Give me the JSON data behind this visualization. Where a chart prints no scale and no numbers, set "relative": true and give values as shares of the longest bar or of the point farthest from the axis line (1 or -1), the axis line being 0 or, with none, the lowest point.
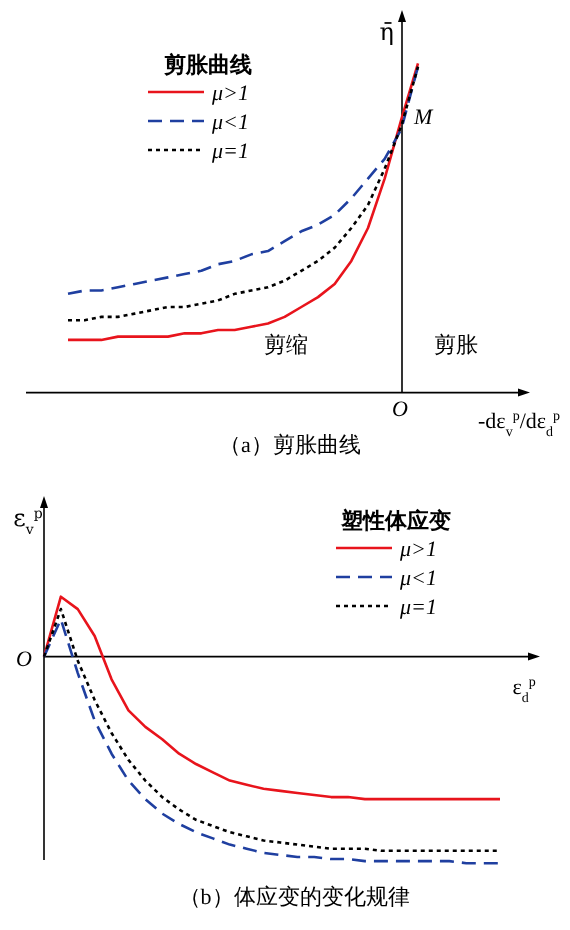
{
  "chart_data": [
    {
      "type": "line",
      "relative": true,
      "legend_title": "剪胀曲线",
      "legend": "top left",
      "xlabel": "-dε$_{v}$$^{p}$/dε$_{d}$$^{p}$",
      "ylabel": "η̄",
      "annotations": [
        "剪缩",
        "剪胀",
        "M",
        "O",
        "（a）剪胀曲线"
      ],
      "categories": [
        null,
        null,
        null,
        null,
        null,
        null,
        null,
        null,
        null,
        null,
        null,
        null,
        null,
        null,
        null,
        null,
        null,
        null,
        null,
        null,
        null,
        null
      ],
      "series": [
        {
          "name": "μ>1",
          "color": "#e8141c",
          "line_style": "solid",
          "values": [
            0.16,
            0.16,
            0.16,
            0.17,
            0.17,
            0.17,
            0.17,
            0.18,
            0.18,
            0.19,
            0.19,
            0.2,
            0.21,
            0.23,
            0.26,
            0.29,
            0.33,
            0.4,
            0.5,
            0.65,
            0.83,
            1
          ]
        },
        {
          "name": "μ<1",
          "color": "#1f3fa0",
          "line_style": "dashed",
          "values": [
            0.3,
            0.31,
            0.31,
            0.32,
            0.33,
            0.34,
            0.35,
            0.36,
            0.37,
            0.39,
            0.4,
            0.42,
            0.43,
            0.46,
            0.49,
            0.51,
            0.54,
            0.59,
            0.65,
            0.71,
            0.8,
            0.99
          ]
        },
        {
          "name": "μ=1",
          "color": "#000000",
          "line_style": "dotted",
          "values": [
            0.22,
            0.22,
            0.23,
            0.23,
            0.24,
            0.25,
            0.26,
            0.26,
            0.27,
            0.28,
            0.3,
            0.31,
            0.32,
            0.34,
            0.37,
            0.4,
            0.44,
            0.5,
            0.57,
            0.68,
            0.81,
            0.99
          ]
        }
      ]
    },
    {
      "type": "line",
      "relative": true,
      "legend_title": "塑性体应变",
      "legend": "top right",
      "xlabel": "ε$_{d}$$^{p}$",
      "ylabel": "ε$_{v}$$^{p}$",
      "annotations": [
        "O",
        "（b）体应变的变化规律"
      ],
      "categories": [
        null,
        null,
        null,
        null,
        null,
        null,
        null,
        null,
        null,
        null,
        null,
        null,
        null,
        null,
        null,
        null,
        null,
        null,
        null,
        null,
        null,
        null,
        null,
        null,
        null,
        null,
        null,
        null
      ],
      "series": [
        {
          "name": "μ>1",
          "color": "#e8141c",
          "line_style": "solid",
          "values": [
            0,
            0.29,
            0.23,
            0.1,
            -0.11,
            -0.26,
            -0.34,
            -0.4,
            -0.47,
            -0.52,
            -0.56,
            -0.6,
            -0.62,
            -0.64,
            -0.65,
            -0.66,
            -0.67,
            -0.68,
            -0.68,
            -0.69,
            -0.69,
            -0.69,
            -0.69,
            -0.69,
            -0.69,
            -0.69,
            -0.69,
            -0.69
          ]
        },
        {
          "name": "μ<1",
          "color": "#1f3fa0",
          "line_style": "dashed",
          "values": [
            0,
            0.18,
            -0.08,
            -0.31,
            -0.47,
            -0.6,
            -0.69,
            -0.76,
            -0.81,
            -0.85,
            -0.88,
            -0.91,
            -0.93,
            -0.95,
            -0.96,
            -0.97,
            -0.97,
            -0.98,
            -0.98,
            -0.99,
            -0.99,
            -0.99,
            -0.99,
            -0.99,
            -0.99,
            -1,
            -1,
            -1
          ]
        },
        {
          "name": "μ=1",
          "color": "#000000",
          "line_style": "dotted",
          "values": [
            0,
            0.23,
            -0.02,
            -0.21,
            -0.37,
            -0.5,
            -0.6,
            -0.68,
            -0.74,
            -0.79,
            -0.82,
            -0.85,
            -0.87,
            -0.89,
            -0.9,
            -0.91,
            -0.92,
            -0.93,
            -0.93,
            -0.93,
            -0.94,
            -0.94,
            -0.94,
            -0.94,
            -0.94,
            -0.94,
            -0.94,
            -0.94
          ]
        }
      ]
    }
  ]
}
